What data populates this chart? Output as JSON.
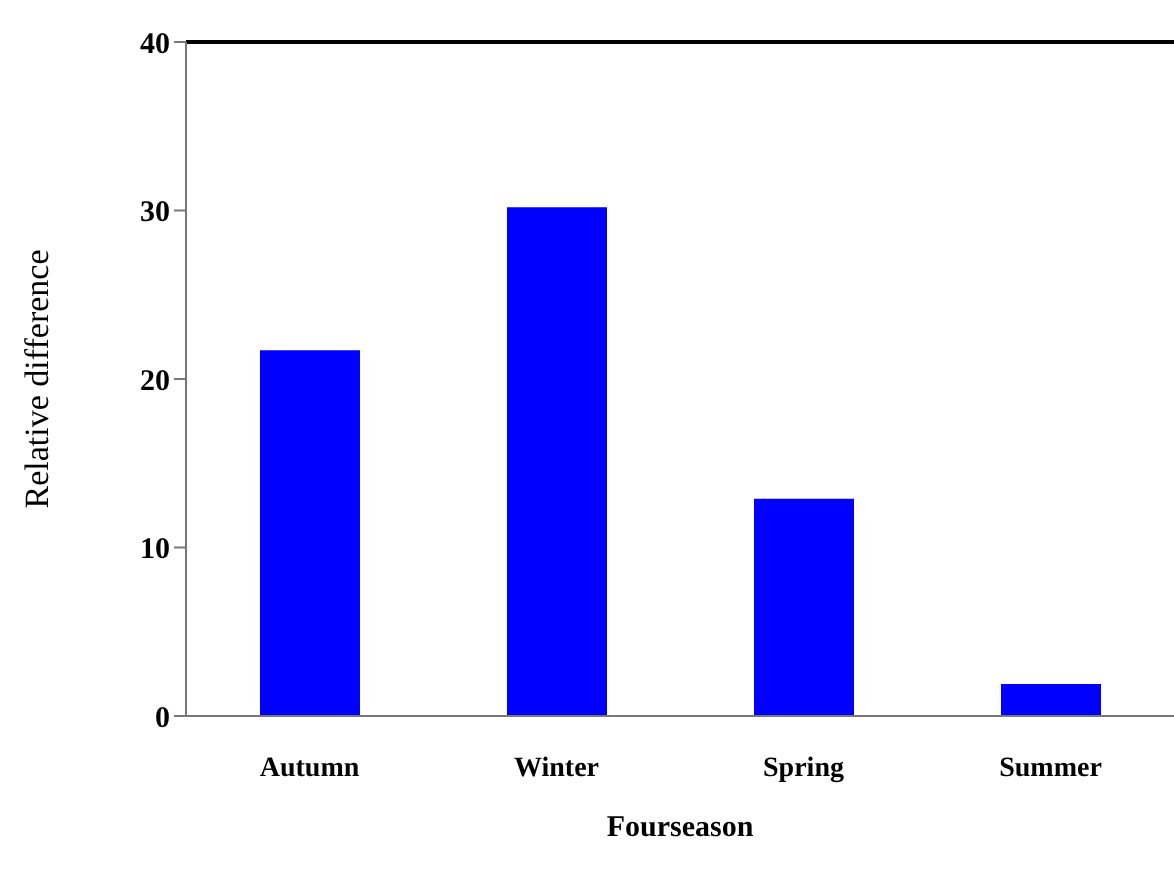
{
  "chart_data": {
    "type": "bar",
    "xlabel": "Fourseason",
    "ylabel": "Relative difference",
    "categories": [
      "Autumn",
      "Winter",
      "Spring",
      "Summer"
    ],
    "values": [
      21.7,
      30.2,
      12.9,
      1.9
    ],
    "color": "#0000ff",
    "ylim": [
      0,
      40
    ],
    "yticks": [
      0,
      10,
      20,
      30,
      40
    ],
    "grid": false
  }
}
